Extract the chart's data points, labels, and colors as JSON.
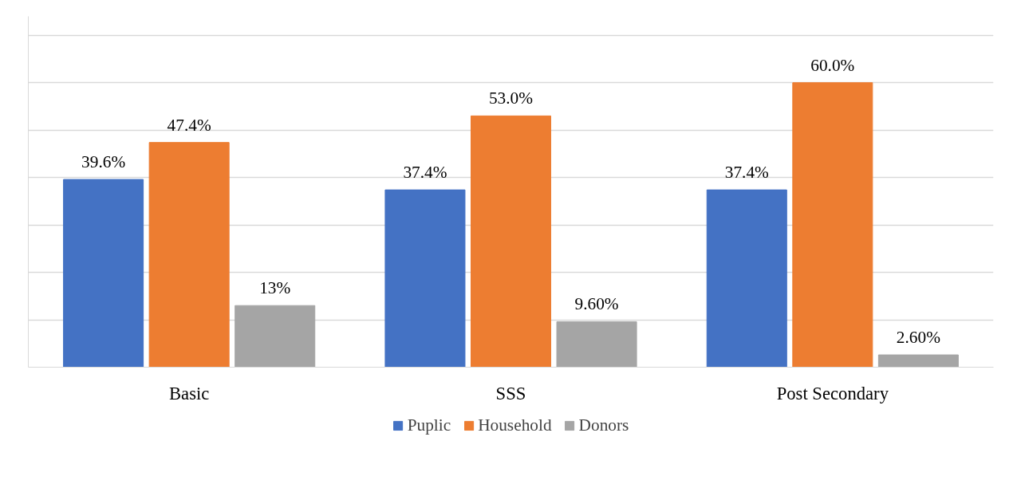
{
  "chart_data": {
    "type": "bar",
    "categories": [
      "Basic",
      "SSS",
      "Post Secondary"
    ],
    "series": [
      {
        "name": "Puplic",
        "color": "#4472c4",
        "values": [
          39.6,
          37.4,
          37.4
        ],
        "value_labels": [
          "39.6%",
          "37.4%",
          "37.4%"
        ]
      },
      {
        "name": "Household",
        "color": "#ed7d31",
        "values": [
          47.4,
          53.0,
          60.0
        ],
        "value_labels": [
          "47.4%",
          "53.0%",
          "60.0%"
        ]
      },
      {
        "name": "Donors",
        "color": "#a5a5a5",
        "values": [
          13,
          9.6,
          2.6
        ],
        "value_labels": [
          "13%",
          "9.60%",
          "2.60%"
        ]
      }
    ],
    "ylim": [
      0,
      74
    ],
    "yticks": [
      {
        "value": 0,
        "label": null
      },
      {
        "value": 10,
        "label": null
      },
      {
        "value": 20,
        "label": null
      },
      {
        "value": 30,
        "label": null
      },
      {
        "value": 40,
        "label": null
      },
      {
        "value": 50,
        "label": null
      },
      {
        "value": 60,
        "label": null
      },
      {
        "value": 70,
        "label": null
      }
    ],
    "grid": "y",
    "legend": "bottom",
    "tick_labels": "x"
  }
}
